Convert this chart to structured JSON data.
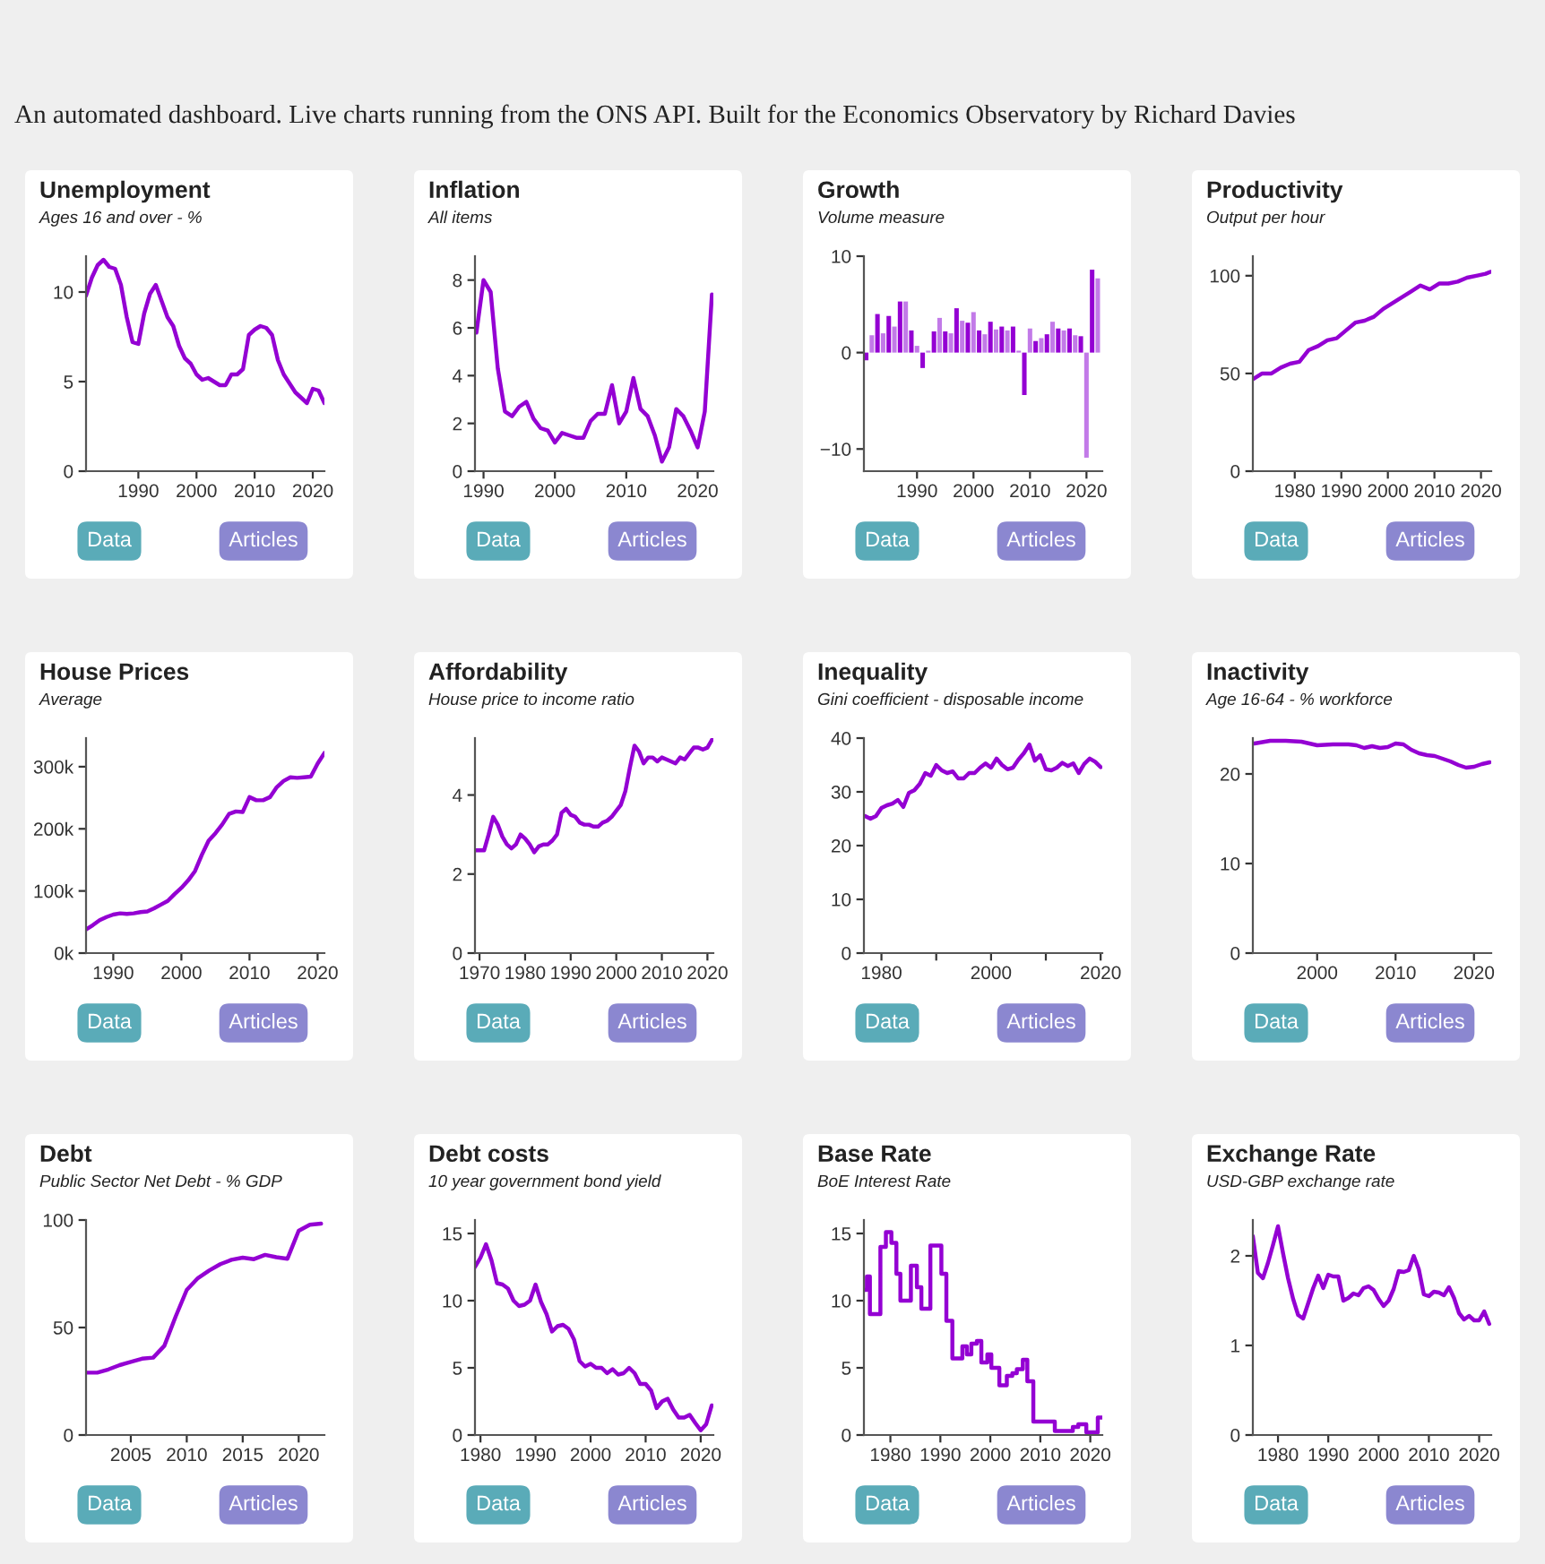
{
  "chart_data": [
    {
      "type": "other",
      "title": "An automated dashboard. Live charts running from the ONS API. Built for the Economics Observatory by Richard Davies"
    },
    {
      "type": "line",
      "title": "Unemployment",
      "subtitle": "Ages 16 and over - %",
      "annotations": [
        "Data",
        "Articles"
      ],
      "xlim": [
        1981,
        2022
      ],
      "ylim": [
        0,
        12
      ],
      "xticks": [
        1990,
        2000,
        2010,
        2020
      ],
      "yticks": [
        0,
        5,
        10
      ],
      "grid": false,
      "x": [
        1981,
        1982,
        1983,
        1984,
        1985,
        1986,
        1987,
        1988,
        1989,
        1990,
        1991,
        1992,
        1993,
        1994,
        1995,
        1996,
        1997,
        1998,
        1999,
        2000,
        2001,
        2002,
        2003,
        2004,
        2005,
        2006,
        2007,
        2008,
        2009,
        2010,
        2011,
        2012,
        2013,
        2014,
        2015,
        2016,
        2017,
        2018,
        2019,
        2020,
        2021,
        2022
      ],
      "series": [
        {
          "color": "#9400d3",
          "values": [
            9.8,
            10.8,
            11.5,
            11.8,
            11.4,
            11.3,
            10.4,
            8.6,
            7.2,
            7.1,
            8.8,
            9.9,
            10.4,
            9.5,
            8.6,
            8.1,
            7.0,
            6.3,
            6.0,
            5.4,
            5.1,
            5.2,
            5.0,
            4.8,
            4.8,
            5.4,
            5.4,
            5.7,
            7.6,
            7.9,
            8.1,
            8.0,
            7.6,
            6.2,
            5.4,
            4.9,
            4.4,
            4.1,
            3.8,
            4.6,
            4.5,
            3.8
          ]
        }
      ]
    },
    {
      "type": "line",
      "title": "Inflation",
      "subtitle": "All items",
      "annotations": [
        "Data",
        "Articles"
      ],
      "xlim": [
        1988.8,
        2022.2
      ],
      "ylim": [
        0,
        9
      ],
      "xticks": [
        1990,
        2000,
        2010,
        2020
      ],
      "yticks": [
        0,
        2,
        4,
        6,
        8
      ],
      "grid": false,
      "x": [
        1989,
        1990,
        1991,
        1992,
        1993,
        1994,
        1995,
        1996,
        1997,
        1998,
        1999,
        2000,
        2001,
        2002,
        2003,
        2004,
        2005,
        2006,
        2007,
        2008,
        2009,
        2010,
        2011,
        2012,
        2013,
        2014,
        2015,
        2016,
        2017,
        2018,
        2019,
        2020,
        2021,
        2022
      ],
      "series": [
        {
          "color": "#9400d3",
          "values": [
            5.8,
            8.0,
            7.5,
            4.3,
            2.5,
            2.3,
            2.7,
            2.9,
            2.2,
            1.8,
            1.7,
            1.2,
            1.6,
            1.5,
            1.4,
            1.4,
            2.1,
            2.4,
            2.4,
            3.6,
            2.0,
            2.5,
            3.9,
            2.6,
            2.3,
            1.5,
            0.4,
            1.0,
            2.6,
            2.3,
            1.7,
            1.0,
            2.5,
            7.4
          ]
        }
      ]
    },
    {
      "type": "bar",
      "title": "Growth",
      "subtitle": "Volume measure",
      "annotations": [
        "Data",
        "Articles"
      ],
      "xlim": [
        1980.6,
        2022.8
      ],
      "ylim": [
        -12.3,
        10
      ],
      "xticks": [
        1990,
        2000,
        2010,
        2020
      ],
      "yticks": [
        {
          "value": -10,
          "label": "−10"
        },
        0,
        10
      ],
      "grid": false,
      "x": [
        1981,
        1982,
        1983,
        1984,
        1985,
        1986,
        1987,
        1988,
        1989,
        1990,
        1991,
        1992,
        1993,
        1994,
        1995,
        1996,
        1997,
        1998,
        1999,
        2000,
        2001,
        2002,
        2003,
        2004,
        2005,
        2006,
        2007,
        2008,
        2009,
        2010,
        2011,
        2012,
        2013,
        2014,
        2015,
        2016,
        2017,
        2018,
        2019,
        2020,
        2021,
        2022
      ],
      "series": [
        {
          "colors": [
            "#9400d3",
            "#c27ae8",
            "#9400d3",
            "#c27ae8",
            "#9400d3",
            "#c27ae8",
            "#9400d3",
            "#c27ae8",
            "#9400d3",
            "#c27ae8",
            "#9400d3",
            "#c27ae8",
            "#9400d3",
            "#c27ae8",
            "#9400d3",
            "#c27ae8",
            "#9400d3",
            "#c27ae8",
            "#9400d3",
            "#c27ae8",
            "#9400d3",
            "#c27ae8",
            "#9400d3",
            "#c27ae8",
            "#9400d3",
            "#c27ae8",
            "#9400d3",
            "#c27ae8",
            "#9400d3",
            "#c27ae8",
            "#9400d3",
            "#c27ae8",
            "#9400d3",
            "#c27ae8",
            "#9400d3",
            "#c27ae8",
            "#9400d3",
            "#c27ae8",
            "#9400d3",
            "#c27ae8",
            "#9400d3",
            "#c27ae8"
          ],
          "values": [
            -0.8,
            1.8,
            4.0,
            2.0,
            3.8,
            2.7,
            5.3,
            5.3,
            2.3,
            0.7,
            -1.6,
            0.2,
            2.2,
            3.6,
            2.2,
            2.0,
            4.6,
            3.3,
            3.1,
            4.2,
            2.3,
            1.9,
            3.2,
            2.4,
            2.7,
            2.3,
            2.7,
            0.2,
            -4.4,
            2.5,
            1.2,
            1.5,
            1.9,
            3.2,
            2.5,
            2.3,
            2.5,
            1.8,
            1.7,
            -10.9,
            8.6,
            7.7
          ]
        }
      ]
    },
    {
      "type": "line",
      "title": "Productivity",
      "subtitle": "Output per hour",
      "annotations": [
        "Data",
        "Articles"
      ],
      "xlim": [
        1971,
        2022.2
      ],
      "ylim": [
        0,
        110
      ],
      "xticks": [
        1980,
        1990,
        2000,
        2010,
        2020
      ],
      "yticks": [
        0,
        50,
        100
      ],
      "grid": false,
      "x": [
        1971,
        1973,
        1975,
        1977,
        1979,
        1981,
        1983,
        1985,
        1987,
        1989,
        1991,
        1993,
        1995,
        1997,
        1999,
        2001,
        2003,
        2005,
        2007,
        2009,
        2011,
        2013,
        2015,
        2017,
        2019,
        2021,
        2022
      ],
      "series": [
        {
          "color": "#9400d3",
          "values": [
            47,
            50,
            50,
            53,
            55,
            56,
            62,
            64,
            67,
            68,
            72,
            76,
            77,
            79,
            83,
            86,
            89,
            92,
            95,
            93,
            96,
            96,
            97,
            99,
            100,
            101,
            102
          ]
        }
      ]
    },
    {
      "type": "line",
      "title": "House Prices",
      "subtitle": "Average",
      "annotations": [
        "Data",
        "Articles"
      ],
      "xlim": [
        1986,
        2021
      ],
      "ylim": [
        0,
        346
      ],
      "xticks": [
        1990,
        2000,
        2010,
        2020
      ],
      "yticks": [
        {
          "value": 0,
          "label": "0k"
        },
        {
          "value": 100,
          "label": "100k"
        },
        {
          "value": 200,
          "label": "200k"
        },
        {
          "value": 300,
          "label": "300k"
        }
      ],
      "grid": false,
      "x": [
        1986,
        1987,
        1988,
        1989,
        1990,
        1991,
        1992,
        1993,
        1994,
        1995,
        1996,
        1997,
        1998,
        1999,
        2000,
        2001,
        2002,
        2003,
        2004,
        2005,
        2006,
        2007,
        2008,
        2009,
        2010,
        2011,
        2012,
        2013,
        2014,
        2015,
        2016,
        2017,
        2018,
        2019,
        2020,
        2021
      ],
      "series": [
        {
          "color": "#9400d3",
          "values": [
            38,
            45,
            53,
            58,
            62,
            64,
            63,
            64,
            66,
            67,
            72,
            78,
            84,
            95,
            105,
            117,
            132,
            158,
            181,
            193,
            207,
            224,
            228,
            227,
            251,
            246,
            246,
            251,
            267,
            277,
            283,
            282,
            283,
            284,
            305,
            322
          ]
        }
      ]
    },
    {
      "type": "line",
      "title": "Affordability",
      "subtitle": "House price to income ratio",
      "annotations": [
        "Data",
        "Articles"
      ],
      "xlim": [
        1969,
        2021.3
      ],
      "ylim": [
        0,
        5.44
      ],
      "xticks": [
        1970,
        1980,
        1990,
        2000,
        2010,
        2020
      ],
      "yticks": [
        0,
        2,
        4
      ],
      "grid": false,
      "x": [
        1969,
        1970,
        1971,
        1972,
        1973,
        1974,
        1975,
        1976,
        1977,
        1978,
        1979,
        1980,
        1981,
        1982,
        1983,
        1984,
        1985,
        1986,
        1987,
        1988,
        1989,
        1990,
        1991,
        1992,
        1993,
        1994,
        1995,
        1996,
        1997,
        1998,
        1999,
        2000,
        2001,
        2002,
        2003,
        2004,
        2005,
        2006,
        2007,
        2008,
        2009,
        2010,
        2011,
        2012,
        2013,
        2014,
        2015,
        2016,
        2017,
        2018,
        2019,
        2020,
        2021
      ],
      "series": [
        {
          "color": "#9400d3",
          "values": [
            2.6,
            2.6,
            2.6,
            3.0,
            3.45,
            3.25,
            2.95,
            2.75,
            2.65,
            2.75,
            3.0,
            2.9,
            2.75,
            2.55,
            2.7,
            2.75,
            2.75,
            2.85,
            3.0,
            3.55,
            3.65,
            3.5,
            3.45,
            3.3,
            3.25,
            3.25,
            3.2,
            3.2,
            3.3,
            3.35,
            3.45,
            3.6,
            3.75,
            4.1,
            4.7,
            5.25,
            5.1,
            4.8,
            4.95,
            4.95,
            4.85,
            4.95,
            4.9,
            4.85,
            4.8,
            4.95,
            4.9,
            5.05,
            5.2,
            5.2,
            5.15,
            5.2,
            5.4
          ]
        }
      ]
    },
    {
      "type": "line",
      "title": "Inequality",
      "subtitle": "Gini coefficient - disposable income",
      "annotations": [
        "Data",
        "Articles"
      ],
      "xlim": [
        1976.8,
        2020.3
      ],
      "ylim": [
        0,
        40
      ],
      "xticks": [
        1980,
        {
          "value": 1990,
          "label": null
        },
        2000,
        {
          "value": 2010,
          "label": null
        },
        2020
      ],
      "yticks": [
        0,
        10,
        20,
        30,
        40
      ],
      "grid": false,
      "x": [
        1977,
        1978,
        1979,
        1980,
        1981,
        1982,
        1983,
        1984,
        1985,
        1986,
        1987,
        1988,
        1989,
        1990,
        1991,
        1992,
        1993,
        1994,
        1995,
        1996,
        1997,
        1998,
        1999,
        2000,
        2001,
        2002,
        2003,
        2004,
        2005,
        2006,
        2007,
        2008,
        2009,
        2010,
        2011,
        2012,
        2013,
        2014,
        2015,
        2016,
        2017,
        2018,
        2019,
        2020
      ],
      "series": [
        {
          "color": "#9400d3",
          "values": [
            25.5,
            25,
            25.5,
            27,
            27.5,
            27.8,
            28.5,
            27.2,
            29.8,
            30.3,
            31.5,
            33.5,
            33,
            35,
            34,
            33.5,
            33.8,
            32.5,
            32.5,
            33.5,
            33.5,
            34.5,
            35.3,
            34.5,
            36.2,
            35,
            34.2,
            34.5,
            36,
            37.2,
            38.8,
            35.8,
            36.8,
            34.2,
            34,
            34.5,
            35.4,
            34.8,
            35.3,
            33.5,
            35.2,
            36.2,
            35.6,
            34.6
          ]
        }
      ]
    },
    {
      "type": "line",
      "title": "Inactivity",
      "subtitle": "Age 16-64 - % workforce",
      "annotations": [
        "Data",
        "Articles"
      ],
      "xlim": [
        1991.8,
        2022.2
      ],
      "ylim": [
        0,
        24
      ],
      "xticks": [
        2000,
        2010,
        2020
      ],
      "yticks": [
        0,
        10,
        20
      ],
      "grid": false,
      "x": [
        1992,
        1994,
        1996,
        1998,
        2000,
        2002,
        2004,
        2005,
        2006,
        2007,
        2008,
        2009,
        2010,
        2011,
        2012,
        2013,
        2014,
        2015,
        2016,
        2017,
        2018,
        2019,
        2020,
        2021,
        2022
      ],
      "series": [
        {
          "color": "#9400d3",
          "values": [
            23.4,
            23.7,
            23.7,
            23.6,
            23.2,
            23.3,
            23.3,
            23.2,
            22.9,
            23.1,
            22.9,
            23.0,
            23.4,
            23.3,
            22.7,
            22.3,
            22.1,
            22.0,
            21.7,
            21.4,
            21.0,
            20.7,
            20.8,
            21.1,
            21.3
          ]
        }
      ]
    },
    {
      "type": "line",
      "title": "Debt",
      "subtitle": "Public Sector Net Debt - % GDP",
      "annotations": [
        "Data",
        "Articles"
      ],
      "xlim": [
        2001,
        2022.3
      ],
      "ylim": [
        0,
        100
      ],
      "xticks": [
        2005,
        2010,
        2015,
        2020
      ],
      "yticks": [
        0,
        50,
        100
      ],
      "grid": false,
      "x": [
        2001,
        2002,
        2003,
        2004,
        2005,
        2006,
        2007,
        2008,
        2009,
        2010,
        2011,
        2012,
        2013,
        2014,
        2015,
        2016,
        2017,
        2018,
        2019,
        2020,
        2021,
        2022
      ],
      "series": [
        {
          "color": "#9400d3",
          "values": [
            29,
            29,
            30.5,
            32.5,
            34,
            35.5,
            36,
            41.5,
            55,
            67.5,
            73,
            76.5,
            79.5,
            81.5,
            82.5,
            81.8,
            83.8,
            82.7,
            82,
            95,
            97.8,
            98.3
          ]
        }
      ]
    },
    {
      "type": "line",
      "title": "Debt costs",
      "subtitle": "10 year government bond yield",
      "annotations": [
        "Data",
        "Articles"
      ],
      "xlim": [
        1979,
        2022.3
      ],
      "ylim": [
        0,
        16
      ],
      "xticks": [
        1980,
        1990,
        2000,
        2010,
        2020
      ],
      "yticks": [
        0,
        5,
        10,
        15
      ],
      "grid": false,
      "x": [
        1979,
        1980,
        1981,
        1982,
        1983,
        1984,
        1985,
        1986,
        1987,
        1988,
        1989,
        1990,
        1991,
        1992,
        1993,
        1994,
        1995,
        1996,
        1997,
        1998,
        1999,
        2000,
        2001,
        2002,
        2003,
        2004,
        2005,
        2006,
        2007,
        2008,
        2009,
        2010,
        2011,
        2012,
        2013,
        2014,
        2015,
        2016,
        2017,
        2018,
        2019,
        2020,
        2021,
        2022
      ],
      "series": [
        {
          "color": "#9400d3",
          "values": [
            12.5,
            13.2,
            14.2,
            13,
            11.3,
            11.2,
            10.9,
            10.0,
            9.6,
            9.7,
            10,
            11.2,
            9.9,
            9.0,
            7.7,
            8.1,
            8.2,
            7.9,
            7.1,
            5.5,
            5.1,
            5.3,
            5.0,
            5.0,
            4.6,
            4.9,
            4.5,
            4.6,
            5.0,
            4.6,
            3.8,
            3.8,
            3.3,
            2.0,
            2.5,
            2.7,
            1.9,
            1.3,
            1.3,
            1.5,
            0.9,
            0.35,
            0.8,
            2.2
          ]
        }
      ]
    },
    {
      "type": "step",
      "title": "Base Rate",
      "subtitle": "BoE Interest Rate",
      "annotations": [
        "Data",
        "Articles"
      ],
      "xlim": [
        1974.7,
        2022.4
      ],
      "ylim": [
        0,
        16
      ],
      "xticks": [
        1980,
        1990,
        2000,
        2010,
        2020
      ],
      "yticks": [
        0,
        5,
        10,
        15
      ],
      "grid": false,
      "x": [
        1974.7,
        1975.3,
        1975.9,
        1978,
        1979.1,
        1980.2,
        1981.2,
        1982,
        1984.1,
        1985.3,
        1986.2,
        1988,
        1990.2,
        1991.2,
        1992.4,
        1994.4,
        1995.3,
        1996.2,
        1997.3,
        1998.2,
        1999.4,
        2000.2,
        2001.8,
        2003.3,
        2004.4,
        2005.3,
        2006.5,
        2007.4,
        2008.6,
        2012.9,
        2016.5,
        2017.6,
        2019.2,
        2021.5,
        2022.4
      ],
      "series": [
        {
          "color": "#9400d3",
          "values": [
            10.8,
            11.8,
            9.0,
            14.0,
            15.1,
            14.3,
            12.0,
            10.0,
            12.6,
            11.0,
            9.4,
            14.1,
            12.0,
            8.5,
            5.7,
            6.6,
            6.0,
            6.8,
            7.0,
            5.4,
            6.0,
            5.0,
            3.7,
            4.4,
            4.6,
            4.9,
            5.6,
            4.0,
            1.0,
            0.3,
            0.6,
            0.8,
            0.2,
            1.3,
            1.3
          ]
        }
      ]
    },
    {
      "type": "line",
      "title": "Exchange Rate",
      "subtitle": "USD-GBP exchange rate",
      "annotations": [
        "Data",
        "Articles"
      ],
      "xlim": [
        1975,
        2022.4
      ],
      "ylim": [
        0,
        2.4
      ],
      "xticks": [
        1980,
        1990,
        2000,
        2010,
        2020
      ],
      "yticks": [
        0,
        1,
        2
      ],
      "grid": false,
      "x": [
        1975,
        1976,
        1977,
        1978,
        1979,
        1980,
        1981,
        1982,
        1983,
        1984,
        1985,
        1986,
        1987,
        1988,
        1989,
        1990,
        1991,
        1992,
        1993,
        1994,
        1995,
        1996,
        1997,
        1998,
        1999,
        2000,
        2001,
        2002,
        2003,
        2004,
        2005,
        2006,
        2007,
        2008,
        2009,
        2010,
        2011,
        2012,
        2013,
        2014,
        2015,
        2016,
        2017,
        2018,
        2019,
        2020,
        2021,
        2022
      ],
      "series": [
        {
          "color": "#9400d3",
          "values": [
            2.22,
            1.81,
            1.75,
            1.92,
            2.12,
            2.33,
            2.03,
            1.75,
            1.52,
            1.34,
            1.3,
            1.47,
            1.64,
            1.78,
            1.64,
            1.79,
            1.77,
            1.77,
            1.5,
            1.53,
            1.58,
            1.56,
            1.64,
            1.66,
            1.62,
            1.52,
            1.44,
            1.5,
            1.63,
            1.83,
            1.82,
            1.84,
            2.0,
            1.85,
            1.57,
            1.55,
            1.6,
            1.59,
            1.56,
            1.65,
            1.53,
            1.36,
            1.29,
            1.33,
            1.28,
            1.28,
            1.38,
            1.24
          ]
        }
      ]
    }
  ]
}
